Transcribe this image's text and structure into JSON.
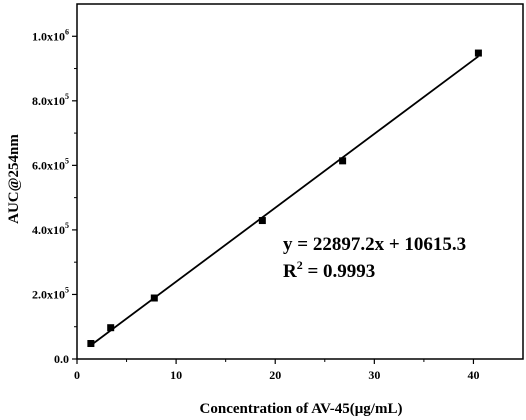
{
  "chart_data": {
    "type": "scatter",
    "xlabel": "Concentration of AV-45(μg/mL)",
    "ylabel": "AUC@254nm",
    "xlim": [
      0,
      45
    ],
    "ylim": [
      0,
      1100000
    ],
    "x_ticks": [
      {
        "value": 0,
        "label": "0"
      },
      {
        "value": 10,
        "label": "10"
      },
      {
        "value": 20,
        "label": "20"
      },
      {
        "value": 30,
        "label": "30"
      },
      {
        "value": 40,
        "label": "40"
      }
    ],
    "y_ticks": [
      {
        "value": 0,
        "mantissa": "0.0",
        "exp": ""
      },
      {
        "value": 200000,
        "mantissa": "2.0x10",
        "exp": "5"
      },
      {
        "value": 400000,
        "mantissa": "4.0x10",
        "exp": "5"
      },
      {
        "value": 600000,
        "mantissa": "6.0x10",
        "exp": "5"
      },
      {
        "value": 800000,
        "mantissa": "8.0x10",
        "exp": "5"
      },
      {
        "value": 1000000,
        "mantissa": "1.0x10",
        "exp": "6"
      }
    ],
    "series": [
      {
        "marker": "square",
        "x": [
          1.4,
          3.4,
          7.8,
          18.7,
          26.8,
          40.5
        ],
        "y": [
          48000,
          97000,
          189000,
          429000,
          614000,
          948000
        ]
      }
    ],
    "fit": {
      "slope": 22897.2,
      "intercept": 10615.3,
      "x_range": [
        1.4,
        40.5
      ]
    },
    "annotations": {
      "equation": "y = 22897.2x + 10615.3",
      "r2_prefix": "R",
      "r2_sup": "2",
      "r2_value": " = 0.9993"
    },
    "grid": false,
    "legend": "none"
  }
}
